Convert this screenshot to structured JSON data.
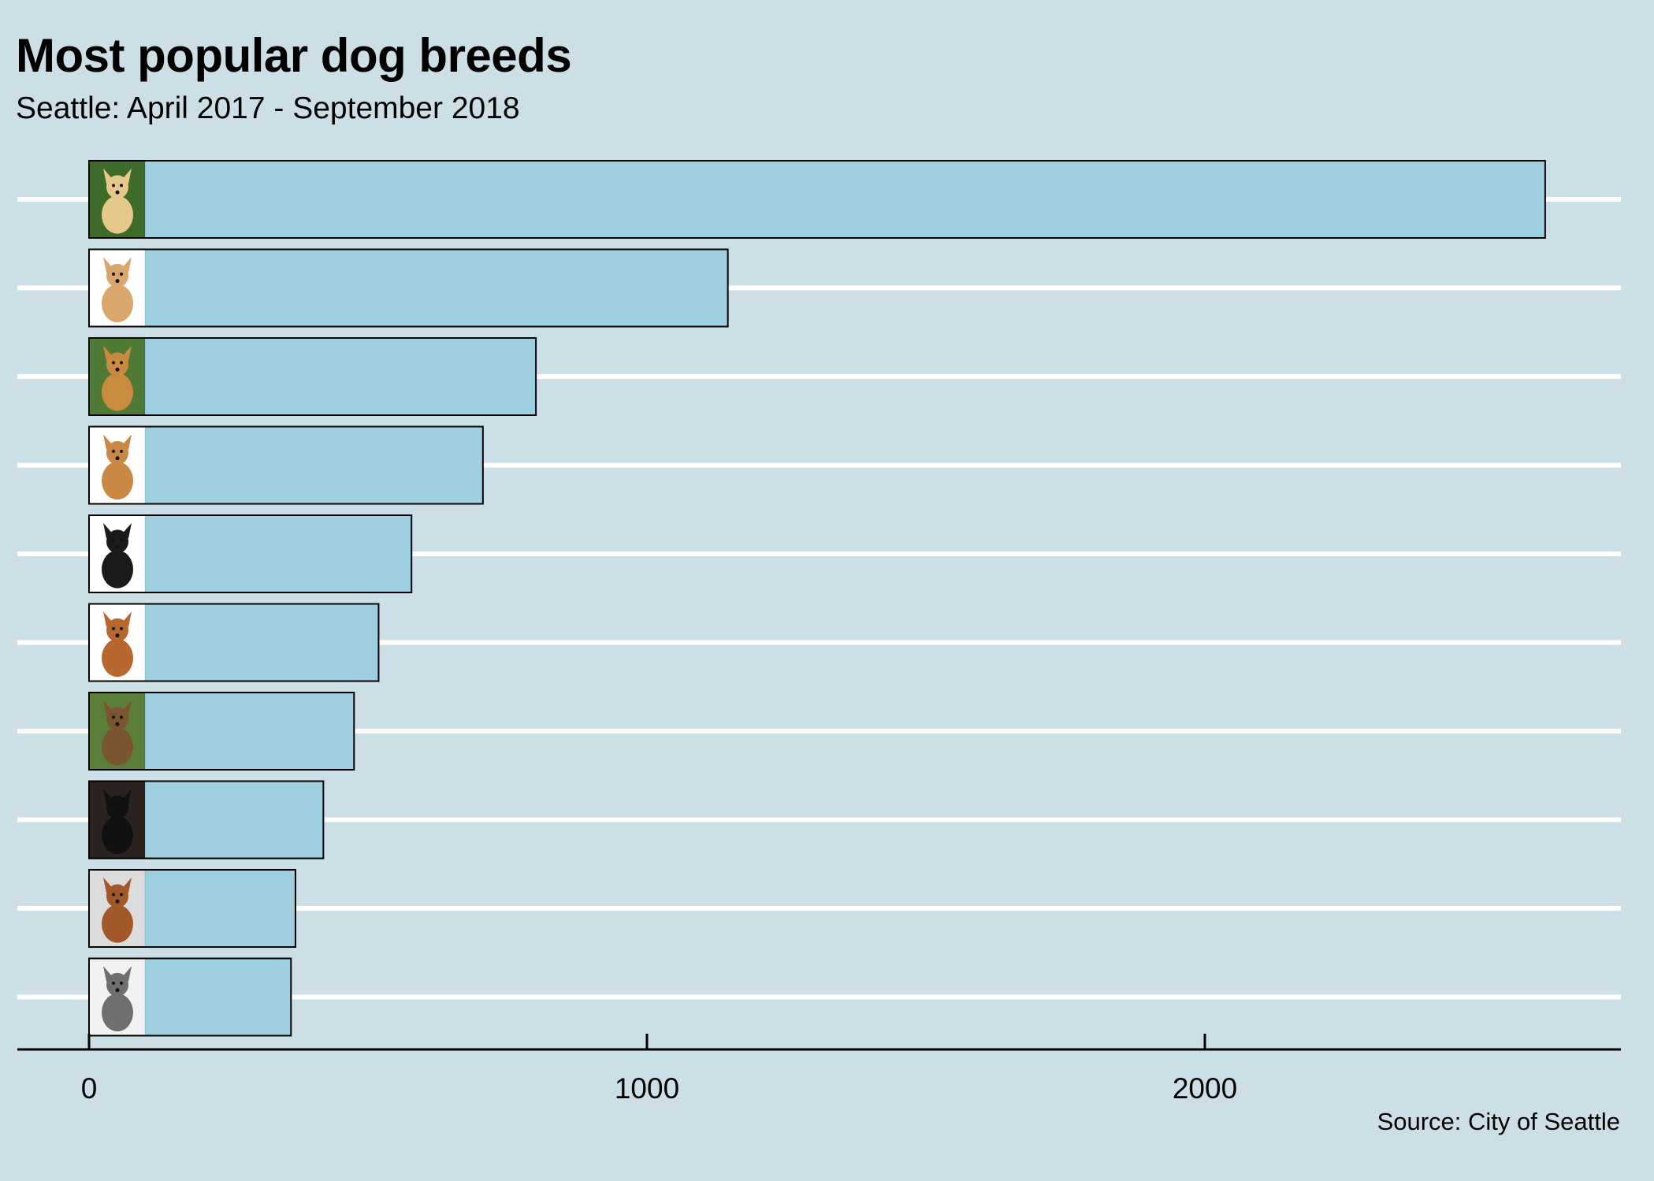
{
  "chart_data": {
    "type": "bar",
    "orientation": "horizontal",
    "title": "Most popular dog breeds",
    "subtitle": "Seattle: April 2017 - September 2018",
    "caption": "Source: City of Seattle",
    "xlabel": "",
    "ylabel": "",
    "xlim": [
      0,
      2750
    ],
    "xticks": [
      0,
      1000,
      2000
    ],
    "xtick_labels": [
      "0",
      "1000",
      "2000"
    ],
    "grid": "horizontal-only",
    "bar_fill": "#9ecfe0",
    "bar_stroke": "#000000",
    "background": "#cddfe6",
    "gridline_color": "#ffffff",
    "bars": [
      {
        "icon": "labrador-retriever-dog-photo-icon",
        "value": 2610
      },
      {
        "icon": "chihuahua-dog-photo-icon",
        "value": 1145
      },
      {
        "icon": "golden-retriever-dog-photo-icon",
        "value": 801
      },
      {
        "icon": "terrier-dog-photo-icon",
        "value": 706
      },
      {
        "icon": "border-collie-dog-photo-icon",
        "value": 578
      },
      {
        "icon": "goldendoodle-dog-photo-icon",
        "value": 519
      },
      {
        "icon": "german-shepherd-dog-photo-icon",
        "value": 475
      },
      {
        "icon": "bernese-mountain-dog-photo-icon",
        "value": 420
      },
      {
        "icon": "pit-bull-dog-photo-icon",
        "value": 370
      },
      {
        "icon": "cattle-dog-photo-icon",
        "value": 362
      }
    ]
  }
}
